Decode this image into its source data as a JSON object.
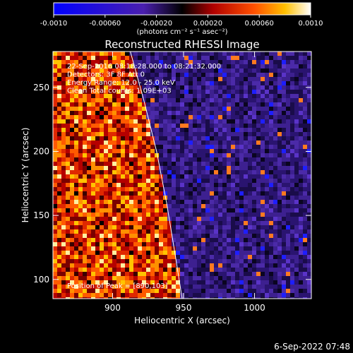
{
  "chart_data": {
    "type": "heatmap",
    "title": "Reconstructed RHESSI Image",
    "xlabel": "Heliocentric X (arcsec)",
    "ylabel": "Heliocentric Y (arcsec)",
    "xlim": [
      858,
      1040
    ],
    "ylim": [
      85,
      278
    ],
    "xticks": [
      900,
      950,
      1000
    ],
    "yticks": [
      100,
      150,
      200,
      250
    ],
    "colorbar": {
      "min": -0.001,
      "max": 0.001,
      "tick_labels": [
        "-0.0010",
        "-0.00060",
        "-0.00020",
        "0.00020",
        "0.00060",
        "0.0010"
      ],
      "units": "(photons cm⁻² s⁻¹ asec⁻²)"
    },
    "annotations": [
      "22-Sep-2016 08:18:28.000 to 08:21:32.000",
      "Detectors: 3F 8F  Att 0",
      "Energy Range: 12.0 - 25.0 keV",
      "Clean    Total counts: 1.09E+03"
    ],
    "peak_label": "Position of Peak = [890,103]",
    "limb_points": [
      [
        912,
        280
      ],
      [
        922,
        240
      ],
      [
        931,
        200
      ],
      [
        938,
        160
      ],
      [
        944,
        120
      ],
      [
        949,
        85
      ]
    ],
    "timestamp": "6-Sep-2022 07:48"
  }
}
